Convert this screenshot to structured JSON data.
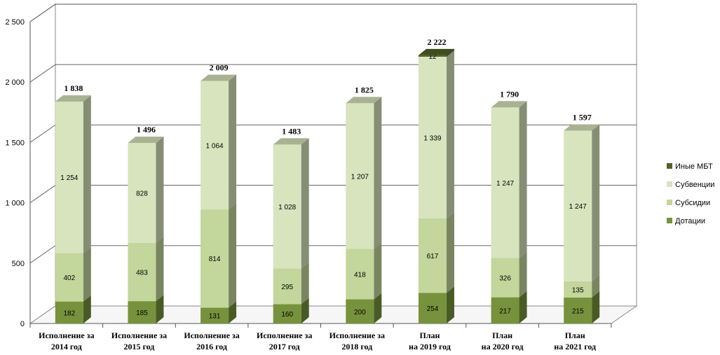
{
  "chart_data": {
    "type": "bar",
    "stacked": true,
    "categories": [
      [
        "Исполнение   за",
        "2014 год"
      ],
      [
        "Исполнение   за",
        "2015 год"
      ],
      [
        "Исполнение   за",
        "2016 год"
      ],
      [
        "Исполнение   за",
        "2017 год"
      ],
      [
        "Исполнение   за",
        "2018 год"
      ],
      [
        "План",
        "на  2019 год"
      ],
      [
        "План",
        "на  2020 год"
      ],
      [
        "План",
        "на  2021 год"
      ]
    ],
    "series": [
      {
        "name": "Дотации",
        "values": [
          182,
          185,
          131,
          160,
          200,
          254,
          217,
          215
        ],
        "labels": [
          "182",
          "185",
          "131",
          "160",
          "200",
          "254",
          "217",
          "215"
        ],
        "color": "#76923c"
      },
      {
        "name": "Субсидии",
        "values": [
          402,
          483,
          814,
          295,
          418,
          617,
          326,
          135
        ],
        "labels": [
          "402",
          "483",
          "814",
          "295",
          "418",
          "617",
          "326",
          "135"
        ],
        "color": "#c3d69b"
      },
      {
        "name": "Субвенции",
        "values": [
          1254,
          828,
          1064,
          1028,
          1207,
          1339,
          1247,
          1247
        ],
        "labels": [
          "1 254",
          "828",
          "1 064",
          "1 028",
          "1 207",
          "1 339",
          "1 247",
          "1 247"
        ],
        "color": "#d7e4bd"
      },
      {
        "name": "Иные МБТ",
        "values": [
          0,
          0,
          0,
          0,
          0,
          12,
          0,
          0
        ],
        "labels": [
          "",
          "",
          "",
          "",
          "",
          "12",
          "",
          ""
        ],
        "color": "#4f6228"
      }
    ],
    "totals": [
      "1 838",
      "1 496",
      "2 009",
      "1 483",
      "1 825",
      "2 222",
      "1 790",
      "1 597"
    ],
    "total_values": [
      1838,
      1496,
      2009,
      1483,
      1825,
      2222,
      1790,
      1597
    ],
    "ylim": [
      0,
      2500
    ],
    "yticks": [
      0,
      500,
      1000,
      1500,
      2000,
      2500
    ],
    "ytick_labels": [
      "0",
      "500",
      "1 000",
      "1 500",
      "2 000",
      "2 500"
    ],
    "grid": true,
    "legend_position": "right",
    "legend_order": [
      "Иные МБТ",
      "Субвенции",
      "Субсидии",
      "Дотации"
    ]
  }
}
